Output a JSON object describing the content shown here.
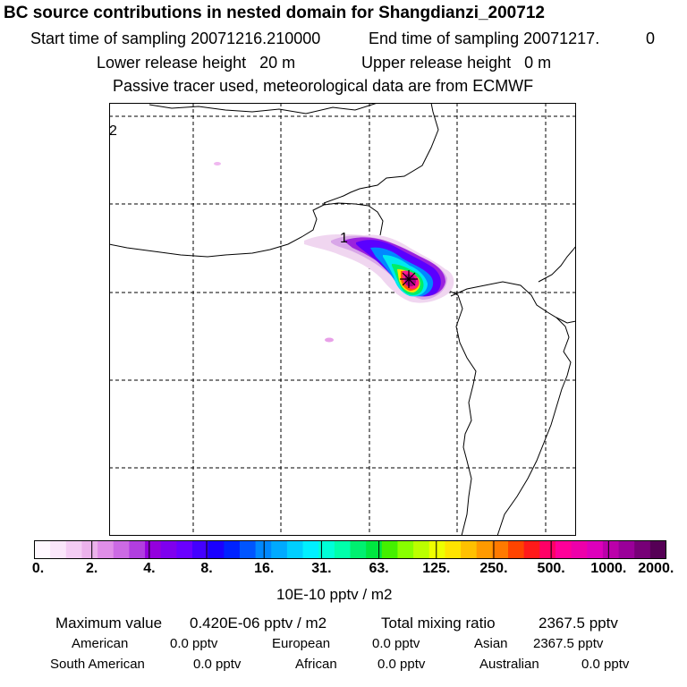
{
  "header": {
    "title": "BC  source contributions in nested domain for Shangdianzi_200712",
    "start_label": "Start time of sampling",
    "start_value": "20071216.210000",
    "end_label": "End time of sampling",
    "end_value": "20071217.",
    "end_suffix": "0",
    "lower_label": "Lower release height",
    "lower_value": "20 m",
    "upper_label": "Upper release height",
    "upper_value": "0 m",
    "tracer_note": "Passive tracer used, meteorological data are from ECMWF"
  },
  "map": {
    "labels": [
      "1",
      "2"
    ],
    "receptor_marker": "receptor-star"
  },
  "colorbar": {
    "tick_labels": [
      "0.",
      "2.",
      "4.",
      "8.",
      "16.",
      "31.",
      "63.",
      "125.",
      "250.",
      "500.",
      "1000.",
      "2000."
    ],
    "unit": "10E-10 pptv / m2",
    "colors": [
      "#fff8ff",
      "#fae6fa",
      "#f4ccf4",
      "#ecb2ec",
      "#e08ee8",
      "#cc6ae4",
      "#b13ee0",
      "#9400dd",
      "#7f00ee",
      "#6a00ff",
      "#4400ff",
      "#1a00ff",
      "#0022ff",
      "#0055ff",
      "#0088ff",
      "#00aaff",
      "#00cfff",
      "#00f0ff",
      "#00ffd8",
      "#00ffaa",
      "#00f070",
      "#00e640",
      "#44f000",
      "#88ff00",
      "#bbff00",
      "#eeff00",
      "#ffe400",
      "#ffc000",
      "#ff9a00",
      "#ff7a00",
      "#ff4400",
      "#ff1a1a",
      "#ff0066",
      "#ff0099",
      "#ee00aa",
      "#dd00bb",
      "#bb00aa",
      "#9a0099",
      "#770077",
      "#550055"
    ]
  },
  "stats": {
    "max_label": "Maximum value",
    "max_value": "0.420E-06 pptv / m2",
    "total_label": "Total mixing ratio",
    "total_value": "2367.5 pptv",
    "regions": [
      {
        "name": "American",
        "value": "0.0 pptv"
      },
      {
        "name": "European",
        "value": "0.0 pptv"
      },
      {
        "name": "Asian",
        "value": "2367.5 pptv"
      },
      {
        "name": "South American",
        "value": "0.0 pptv"
      },
      {
        "name": "African",
        "value": "0.0 pptv"
      },
      {
        "name": "Australian",
        "value": "0.0 pptv"
      }
    ]
  }
}
